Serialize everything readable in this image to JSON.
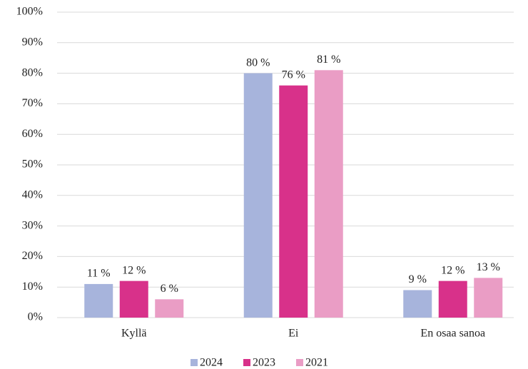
{
  "chart_data": {
    "type": "bar",
    "categories": [
      "Kyllä",
      "Ei",
      "En osaa sanoa"
    ],
    "series": [
      {
        "name": "2024",
        "color": "#a7b4dc",
        "values": [
          11,
          80,
          9
        ],
        "value_labels": [
          "11 %",
          "80 %",
          "9 %"
        ]
      },
      {
        "name": "2023",
        "color": "#d8318a",
        "values": [
          12,
          76,
          12
        ],
        "value_labels": [
          "12 %",
          "76 %",
          "12 %"
        ]
      },
      {
        "name": "2021",
        "color": "#ea9dc5",
        "values": [
          6,
          81,
          13
        ],
        "value_labels": [
          "6 %",
          "81 %",
          "13 %"
        ]
      }
    ],
    "ylim": [
      0,
      100
    ],
    "yticks": [
      {
        "value": 0,
        "label": "0%"
      },
      {
        "value": 10,
        "label": "10%"
      },
      {
        "value": 20,
        "label": "20%"
      },
      {
        "value": 30,
        "label": "30%"
      },
      {
        "value": 40,
        "label": "40%"
      },
      {
        "value": 50,
        "label": "50%"
      },
      {
        "value": 60,
        "label": "60%"
      },
      {
        "value": 70,
        "label": "70%"
      },
      {
        "value": 80,
        "label": "80%"
      },
      {
        "value": 90,
        "label": "90%"
      },
      {
        "value": 100,
        "label": "100%"
      }
    ],
    "grid": true,
    "legend": "bottom"
  }
}
